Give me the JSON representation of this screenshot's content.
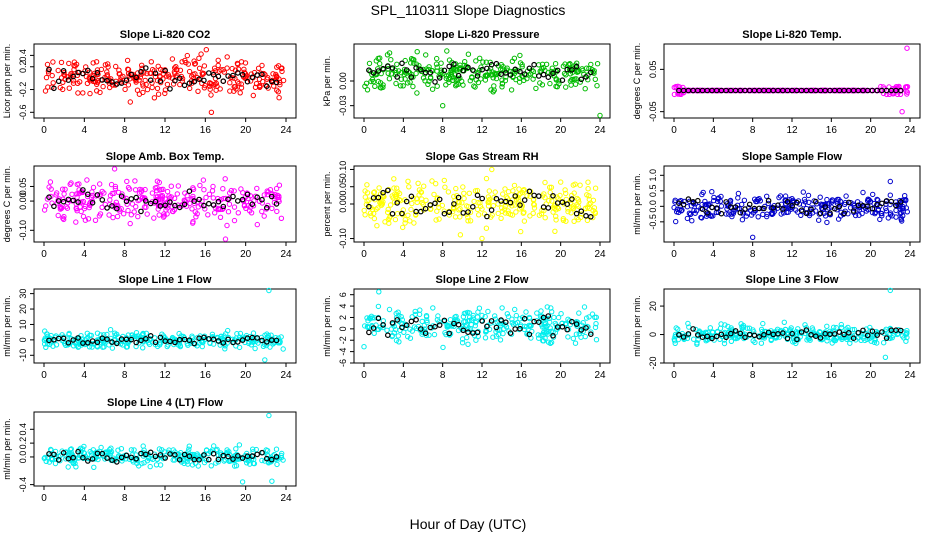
{
  "title": "SPL_110311  Slope Diagnostics",
  "xlabel": "Hour of Day (UTC)",
  "colors": {
    "highlight": "#000000",
    "axis": "#000000"
  },
  "chart_data": [
    {
      "type": "scatter",
      "title": "Slope Li-820 CO2",
      "ylabel": "Licor ppm per min.",
      "color": "#ff0000",
      "xlim": [
        0,
        24
      ],
      "ylim": [
        -0.7,
        0.6
      ],
      "yticks": [
        "-0.6",
        "-0.2",
        "0.2",
        "0.4"
      ],
      "ytick_values": [
        -0.6,
        -0.2,
        0.2,
        0.4
      ],
      "xticks": [
        "0",
        "4",
        "8",
        "12",
        "16",
        "20",
        "24"
      ],
      "center": 0.0,
      "spread": 0.2,
      "outliers": [
        [
          16.1,
          0.5
        ],
        [
          16.6,
          -0.6
        ]
      ],
      "n": 300,
      "seed": 1
    },
    {
      "type": "scatter",
      "title": "Slope Li-820 Pressure",
      "ylabel": "kPa per min.",
      "color": "#00bb00",
      "xlim": [
        0,
        24
      ],
      "ylim": [
        -0.045,
        0.045
      ],
      "yticks": [
        "0.00",
        "-0.03"
      ],
      "ytick_values": [
        0.0,
        -0.03
      ],
      "xticks": [
        "0",
        "4",
        "8",
        "12",
        "16",
        "20",
        "24"
      ],
      "center": 0.01,
      "spread": 0.012,
      "outliers": [
        [
          24,
          -0.042
        ],
        [
          8,
          -0.03
        ]
      ],
      "n": 300,
      "seed": 2
    },
    {
      "type": "scatter",
      "title": "Slope Li-820 Temp.",
      "ylabel": "degrees C per min.",
      "color": "#ff00ff",
      "xlim": [
        0,
        24
      ],
      "ylim": [
        -0.065,
        0.11
      ],
      "yticks": [
        "-0.05",
        "0.05"
      ],
      "ytick_values": [
        -0.05,
        0.05
      ],
      "xticks": [
        "0",
        "4",
        "8",
        "12",
        "16",
        "20",
        "24"
      ],
      "center": 0.0,
      "spread": 0.0,
      "outliers": [
        [
          23.7,
          0.1
        ],
        [
          23.2,
          -0.05
        ],
        [
          0.4,
          0.01
        ]
      ],
      "n": 300,
      "seed": 3
    },
    {
      "type": "scatter",
      "title": "Slope Amb. Box Temp.",
      "ylabel": "degrees C per min.",
      "color": "#ff00ff",
      "xlim": [
        0,
        24
      ],
      "ylim": [
        -0.14,
        0.12
      ],
      "yticks": [
        "-0.10",
        "0.00",
        "0.05"
      ],
      "ytick_values": [
        -0.1,
        0.0,
        0.05
      ],
      "xticks": [
        "0",
        "4",
        "8",
        "12",
        "16",
        "20",
        "24"
      ],
      "center": 0.0,
      "spread": 0.04,
      "outliers": [
        [
          18,
          -0.13
        ],
        [
          7,
          0.11
        ]
      ],
      "n": 300,
      "seed": 4
    },
    {
      "type": "scatter",
      "title": "Slope Gas Stream RH",
      "ylabel": "percent per min.",
      "color": "#ffff00",
      "xlim": [
        0,
        24
      ],
      "ylim": [
        -0.11,
        0.11
      ],
      "yticks": [
        "-0.10",
        "0.00",
        "0.05",
        "0.10"
      ],
      "ytick_values": [
        -0.1,
        0.0,
        0.05,
        0.1
      ],
      "xticks": [
        "0",
        "4",
        "8",
        "12",
        "16",
        "20",
        "24"
      ],
      "center": 0.0,
      "spread": 0.04,
      "outliers": [
        [
          12,
          -0.1
        ],
        [
          13,
          0.1
        ]
      ],
      "n": 300,
      "seed": 5
    },
    {
      "type": "scatter",
      "title": "Slope Sample Flow",
      "ylabel": "ml/min per min.",
      "color": "#0000cc",
      "xlim": [
        0,
        24
      ],
      "ylim": [
        -1.15,
        1.3
      ],
      "yticks": [
        "-0.5",
        "0.0",
        "0.5",
        "1.0"
      ],
      "ytick_values": [
        -0.5,
        0.0,
        0.5,
        1.0
      ],
      "xticks": [
        "0",
        "4",
        "8",
        "12",
        "16",
        "20",
        "24"
      ],
      "center": 0.0,
      "spread": 0.25,
      "outliers": [
        [
          22,
          0.8
        ],
        [
          8,
          -1.0
        ]
      ],
      "n": 300,
      "seed": 6
    },
    {
      "type": "scatter",
      "title": "Slope Line 1 Flow",
      "ylabel": "ml/min per min.",
      "color": "#00eeee",
      "xlim": [
        0,
        24
      ],
      "ylim": [
        -15,
        33
      ],
      "yticks": [
        "-10",
        "0",
        "10",
        "20",
        "30"
      ],
      "ytick_values": [
        -10,
        0,
        10,
        20,
        30
      ],
      "xticks": [
        "0",
        "4",
        "8",
        "12",
        "16",
        "20",
        "24"
      ],
      "center": 0.0,
      "spread": 3,
      "outliers": [
        [
          22.3,
          32
        ],
        [
          21.9,
          -13
        ]
      ],
      "n": 300,
      "seed": 7
    },
    {
      "type": "scatter",
      "title": "Slope Line 2 Flow",
      "ylabel": "ml/min per min.",
      "color": "#00eeee",
      "xlim": [
        0,
        24
      ],
      "ylim": [
        -6,
        7
      ],
      "yticks": [
        "-6",
        "-4",
        "-2",
        "0",
        "2",
        "4",
        "6"
      ],
      "ytick_values": [
        -6,
        -4,
        -2,
        0,
        2,
        4,
        6
      ],
      "xticks": [
        "0",
        "4",
        "8",
        "12",
        "16",
        "20",
        "24"
      ],
      "center": 0.5,
      "spread": 1.8,
      "outliers": [
        [
          1.5,
          6.5
        ]
      ],
      "n": 300,
      "seed": 8
    },
    {
      "type": "scatter",
      "title": "Slope Line 3 Flow",
      "ylabel": "ml/min per min.",
      "color": "#00eeee",
      "xlim": [
        0,
        24
      ],
      "ylim": [
        -20,
        32
      ],
      "yticks": [
        "-20",
        "0",
        "20"
      ],
      "ytick_values": [
        -20,
        0,
        20
      ],
      "xticks": [
        "0",
        "4",
        "8",
        "12",
        "16",
        "20",
        "24"
      ],
      "center": 0.0,
      "spread": 4,
      "outliers": [
        [
          22,
          31
        ],
        [
          21.5,
          -16
        ]
      ],
      "n": 300,
      "seed": 9
    },
    {
      "type": "scatter",
      "title": "Slope Line 4 (LT) Flow",
      "ylabel": "ml/min per min.",
      "color": "#00eeee",
      "xlim": [
        0,
        24
      ],
      "ylim": [
        -0.42,
        0.65
      ],
      "yticks": [
        "-0.4",
        "0.0",
        "0.2",
        "0.4"
      ],
      "ytick_values": [
        -0.4,
        0.0,
        0.2,
        0.4
      ],
      "xticks": [
        "0",
        "4",
        "8",
        "12",
        "16",
        "20",
        "24"
      ],
      "center": 0.0,
      "spread": 0.08,
      "outliers": [
        [
          22.3,
          0.6
        ],
        [
          22.6,
          -0.35
        ],
        [
          19.7,
          -0.36
        ]
      ],
      "n": 300,
      "seed": 10
    }
  ]
}
